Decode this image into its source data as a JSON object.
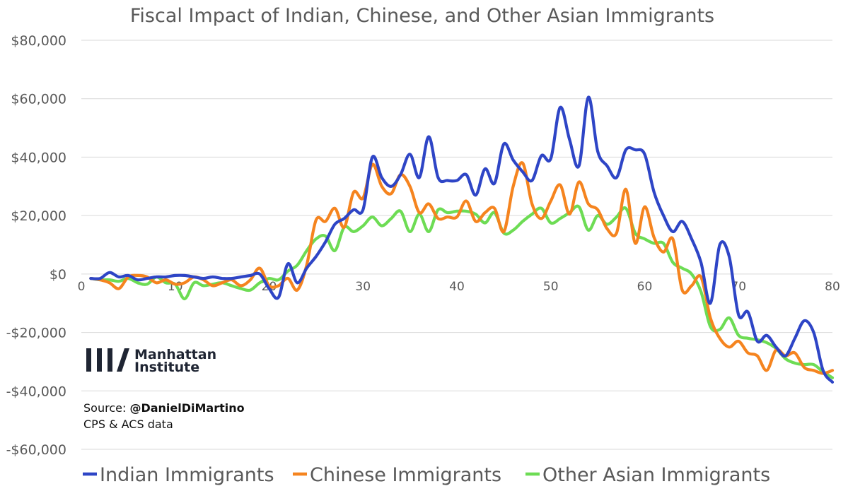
{
  "chart_data": {
    "type": "line",
    "title": "Fiscal Impact of Indian, Chinese, and Other Asian Immigrants",
    "xlabel": "",
    "ylabel": "",
    "xlim": [
      0,
      80
    ],
    "ylim": [
      -60000,
      80000
    ],
    "x_ticks": [
      0,
      10,
      20,
      30,
      40,
      50,
      60,
      70,
      80
    ],
    "x_tick_labels": [
      "0",
      "10",
      "20",
      "30",
      "40",
      "50",
      "60",
      "70",
      "80"
    ],
    "y_ticks": [
      80000,
      60000,
      40000,
      20000,
      0,
      -20000,
      -40000,
      -60000
    ],
    "y_tick_labels": [
      "$80,000",
      "$60,000",
      "$40,000",
      "$20,000",
      "$0",
      "-$20,000",
      "-$40,000",
      "-$60,000"
    ],
    "grid": true,
    "legend_position": "bottom",
    "x": [
      1,
      2,
      3,
      4,
      5,
      6,
      7,
      8,
      9,
      10,
      11,
      12,
      13,
      14,
      15,
      16,
      17,
      18,
      19,
      20,
      21,
      22,
      23,
      24,
      25,
      26,
      27,
      28,
      29,
      30,
      31,
      32,
      33,
      34,
      35,
      36,
      37,
      38,
      39,
      40,
      41,
      42,
      43,
      44,
      45,
      46,
      47,
      48,
      49,
      50,
      51,
      52,
      53,
      54,
      55,
      56,
      57,
      58,
      59,
      60,
      61,
      62,
      63,
      64,
      65,
      66,
      67,
      68,
      69,
      70,
      71,
      72,
      73,
      74,
      75,
      76,
      77,
      78,
      79,
      80
    ],
    "series": [
      {
        "name": "Indian Immigrants",
        "color": "#2e45c6",
        "values": [
          -1500,
          -1500,
          500,
          -1000,
          -500,
          -2000,
          -1500,
          -1000,
          -1000,
          -500,
          -500,
          -1000,
          -1500,
          -1000,
          -1500,
          -1500,
          -1000,
          -500,
          0,
          -5000,
          -8000,
          3500,
          -3000,
          2000,
          6000,
          11000,
          17000,
          19000,
          22000,
          22000,
          40000,
          33000,
          30000,
          34000,
          41000,
          33000,
          47000,
          33000,
          32000,
          32000,
          34000,
          27000,
          36000,
          31000,
          44500,
          39000,
          35000,
          32000,
          40500,
          39500,
          57000,
          46000,
          37000,
          60500,
          42000,
          37000,
          33000,
          42500,
          42500,
          41000,
          28000,
          20000,
          14500,
          18000,
          12000,
          4000,
          -10000,
          10000,
          6000,
          -14000,
          -13000,
          -23000,
          -21000,
          -25000,
          -28000,
          -22000,
          -16000,
          -20000,
          -33000,
          -37000
        ]
      },
      {
        "name": "Chinese Immigrants",
        "color": "#f5841f",
        "values": [
          -1500,
          -2000,
          -3000,
          -5000,
          -1000,
          -500,
          -1000,
          -3000,
          -2000,
          -3500,
          -3000,
          -1000,
          -2000,
          -4000,
          -3000,
          -2000,
          -4000,
          -2000,
          2000,
          -4000,
          -4000,
          -1500,
          -5500,
          3000,
          18500,
          18000,
          22500,
          16000,
          28000,
          26000,
          37500,
          30000,
          27500,
          34000,
          30000,
          21000,
          24000,
          19000,
          19500,
          19500,
          25000,
          18000,
          21000,
          22500,
          14500,
          30000,
          38000,
          24000,
          19000,
          25000,
          30500,
          20500,
          31500,
          24000,
          22000,
          15500,
          14000,
          29000,
          10500,
          23000,
          12500,
          7500,
          12000,
          -5500,
          -4000,
          -1000,
          -15000,
          -22000,
          -25000,
          -23000,
          -27000,
          -28000,
          -33000,
          -26000,
          -28000,
          -27000,
          -32000,
          -33000,
          -34000,
          -33000
        ]
      },
      {
        "name": "Other Asian Immigrants",
        "color": "#6ddc54",
        "values": [
          -1500,
          -2000,
          -2000,
          -2500,
          -1500,
          -3000,
          -3500,
          -1000,
          -3000,
          -3500,
          -8500,
          -3000,
          -4000,
          -3500,
          -3000,
          -4000,
          -5000,
          -5500,
          -3000,
          -1500,
          -2000,
          1000,
          3000,
          8000,
          12000,
          13000,
          8000,
          16000,
          14500,
          16500,
          19500,
          16500,
          19000,
          21500,
          14500,
          20500,
          14500,
          22000,
          21000,
          21500,
          21500,
          20500,
          17500,
          21000,
          14000,
          15000,
          18000,
          20500,
          22500,
          17500,
          19000,
          21000,
          23000,
          15000,
          20000,
          17000,
          19500,
          22500,
          14000,
          12000,
          10500,
          10500,
          4000,
          2000,
          0,
          -6000,
          -18000,
          -19000,
          -15000,
          -21000,
          -22000,
          -22500,
          -23500,
          -25500,
          -29000,
          -30500,
          -31000,
          -31000,
          -33500,
          -35500
        ]
      }
    ]
  },
  "logo": {
    "line1": "Manhattan",
    "line2": "Institute"
  },
  "source": {
    "prefix": "Source: ",
    "handle": "@DanielDiMartino",
    "line2": "CPS & ACS data"
  }
}
